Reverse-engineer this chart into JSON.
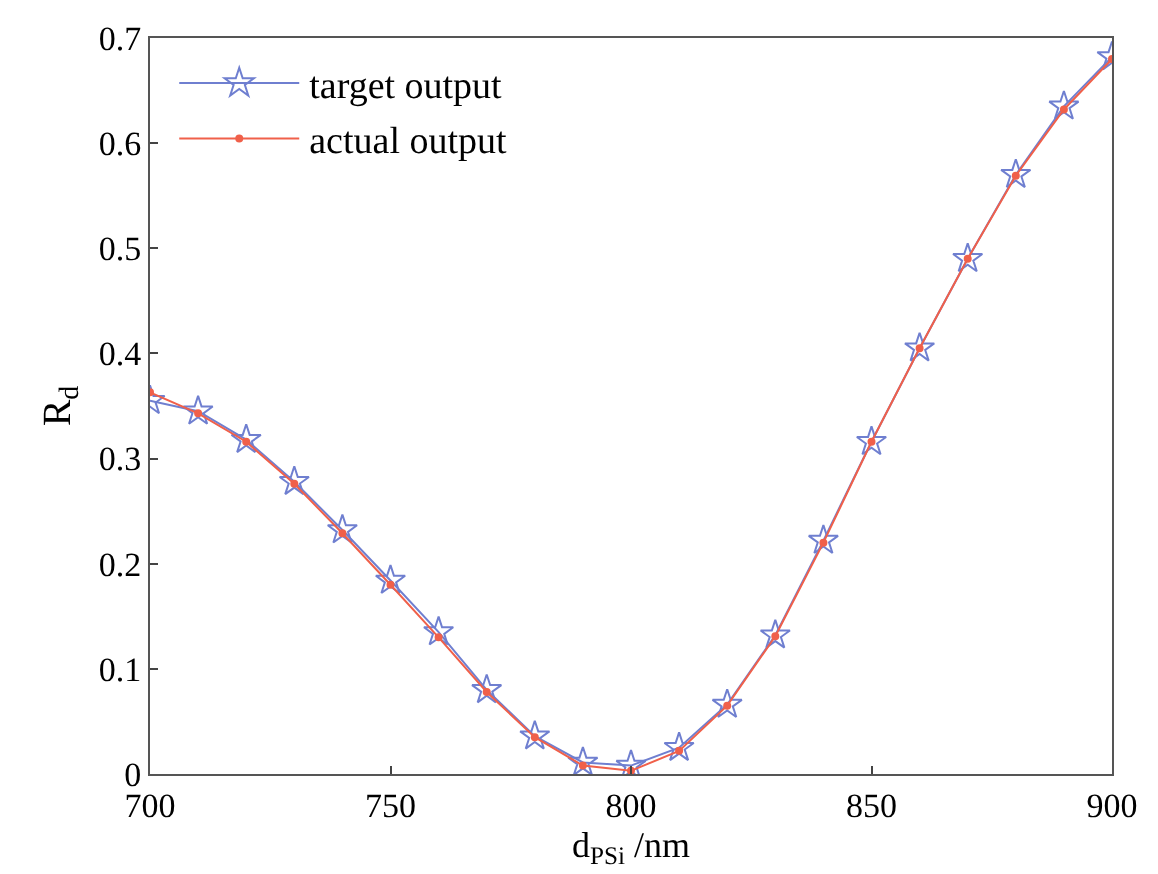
{
  "chart_data": {
    "type": "line",
    "xlabel": "d$_{PSi}$ /nm",
    "ylabel": "R$_{d}$",
    "x": [
      700,
      710,
      720,
      730,
      740,
      750,
      760,
      770,
      780,
      790,
      800,
      810,
      820,
      830,
      840,
      850,
      860,
      870,
      880,
      890,
      900
    ],
    "series": [
      {
        "name": "target output",
        "color": "#6f7fd0",
        "marker": "star",
        "values": [
          0.355,
          0.345,
          0.318,
          0.278,
          0.232,
          0.184,
          0.135,
          0.08,
          0.036,
          0.011,
          0.008,
          0.025,
          0.066,
          0.132,
          0.222,
          0.316,
          0.405,
          0.49,
          0.57,
          0.635,
          0.682
        ]
      },
      {
        "name": "actual output",
        "color": "#f0604a",
        "marker": "circle",
        "values": [
          0.363,
          0.343,
          0.316,
          0.276,
          0.229,
          0.18,
          0.13,
          0.078,
          0.035,
          0.008,
          0.003,
          0.022,
          0.065,
          0.131,
          0.22,
          0.316,
          0.405,
          0.49,
          0.569,
          0.632,
          0.68
        ]
      }
    ],
    "xlim": [
      700,
      900
    ],
    "xticks": [
      700,
      750,
      800,
      850,
      900
    ],
    "ylim": [
      0,
      0.7
    ],
    "yticks": [
      0,
      0.1,
      0.2,
      0.3,
      0.4,
      0.5,
      0.6,
      0.7
    ],
    "legend": "top left",
    "line_style": "solid"
  }
}
